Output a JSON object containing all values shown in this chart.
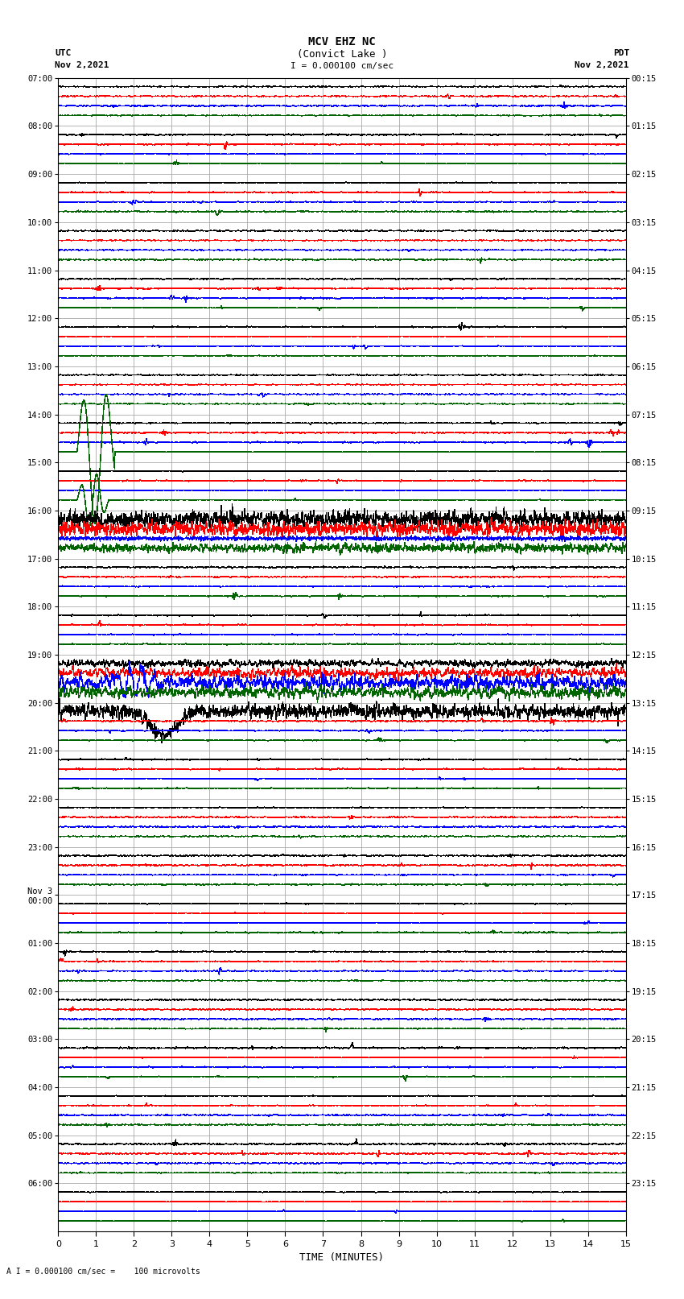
{
  "title_line1": "MCV EHZ NC",
  "title_line2": "(Convict Lake )",
  "scale_label": "I = 0.000100 cm/sec",
  "footer_label": "A I = 0.000100 cm/sec =    100 microvolts",
  "utc_label": "UTC",
  "pdt_label": "PDT",
  "date_left": "Nov 2,2021",
  "date_right": "Nov 2,2021",
  "xlabel": "TIME (MINUTES)",
  "x_ticks": [
    0,
    1,
    2,
    3,
    4,
    5,
    6,
    7,
    8,
    9,
    10,
    11,
    12,
    13,
    14,
    15
  ],
  "time_per_row_minutes": 15,
  "num_rows": 24,
  "utc_row_labels": [
    "07:00",
    "08:00",
    "09:00",
    "10:00",
    "11:00",
    "12:00",
    "13:00",
    "14:00",
    "15:00",
    "16:00",
    "17:00",
    "18:00",
    "19:00",
    "20:00",
    "21:00",
    "22:00",
    "23:00",
    "Nov 3\n00:00",
    "01:00",
    "02:00",
    "03:00",
    "04:00",
    "05:00",
    "06:00"
  ],
  "pdt_row_labels": [
    "00:15",
    "01:15",
    "02:15",
    "03:15",
    "04:15",
    "05:15",
    "06:15",
    "07:15",
    "08:15",
    "09:15",
    "10:15",
    "11:15",
    "12:15",
    "13:15",
    "14:15",
    "15:15",
    "16:15",
    "17:15",
    "18:15",
    "19:15",
    "20:15",
    "21:15",
    "22:15",
    "23:15"
  ],
  "background_color": "#ffffff",
  "trace_colors": [
    "#000000",
    "#ff0000",
    "#0000ff",
    "#006400"
  ],
  "grid_color": "#aaaaaa",
  "fig_width": 8.5,
  "fig_height": 16.13
}
